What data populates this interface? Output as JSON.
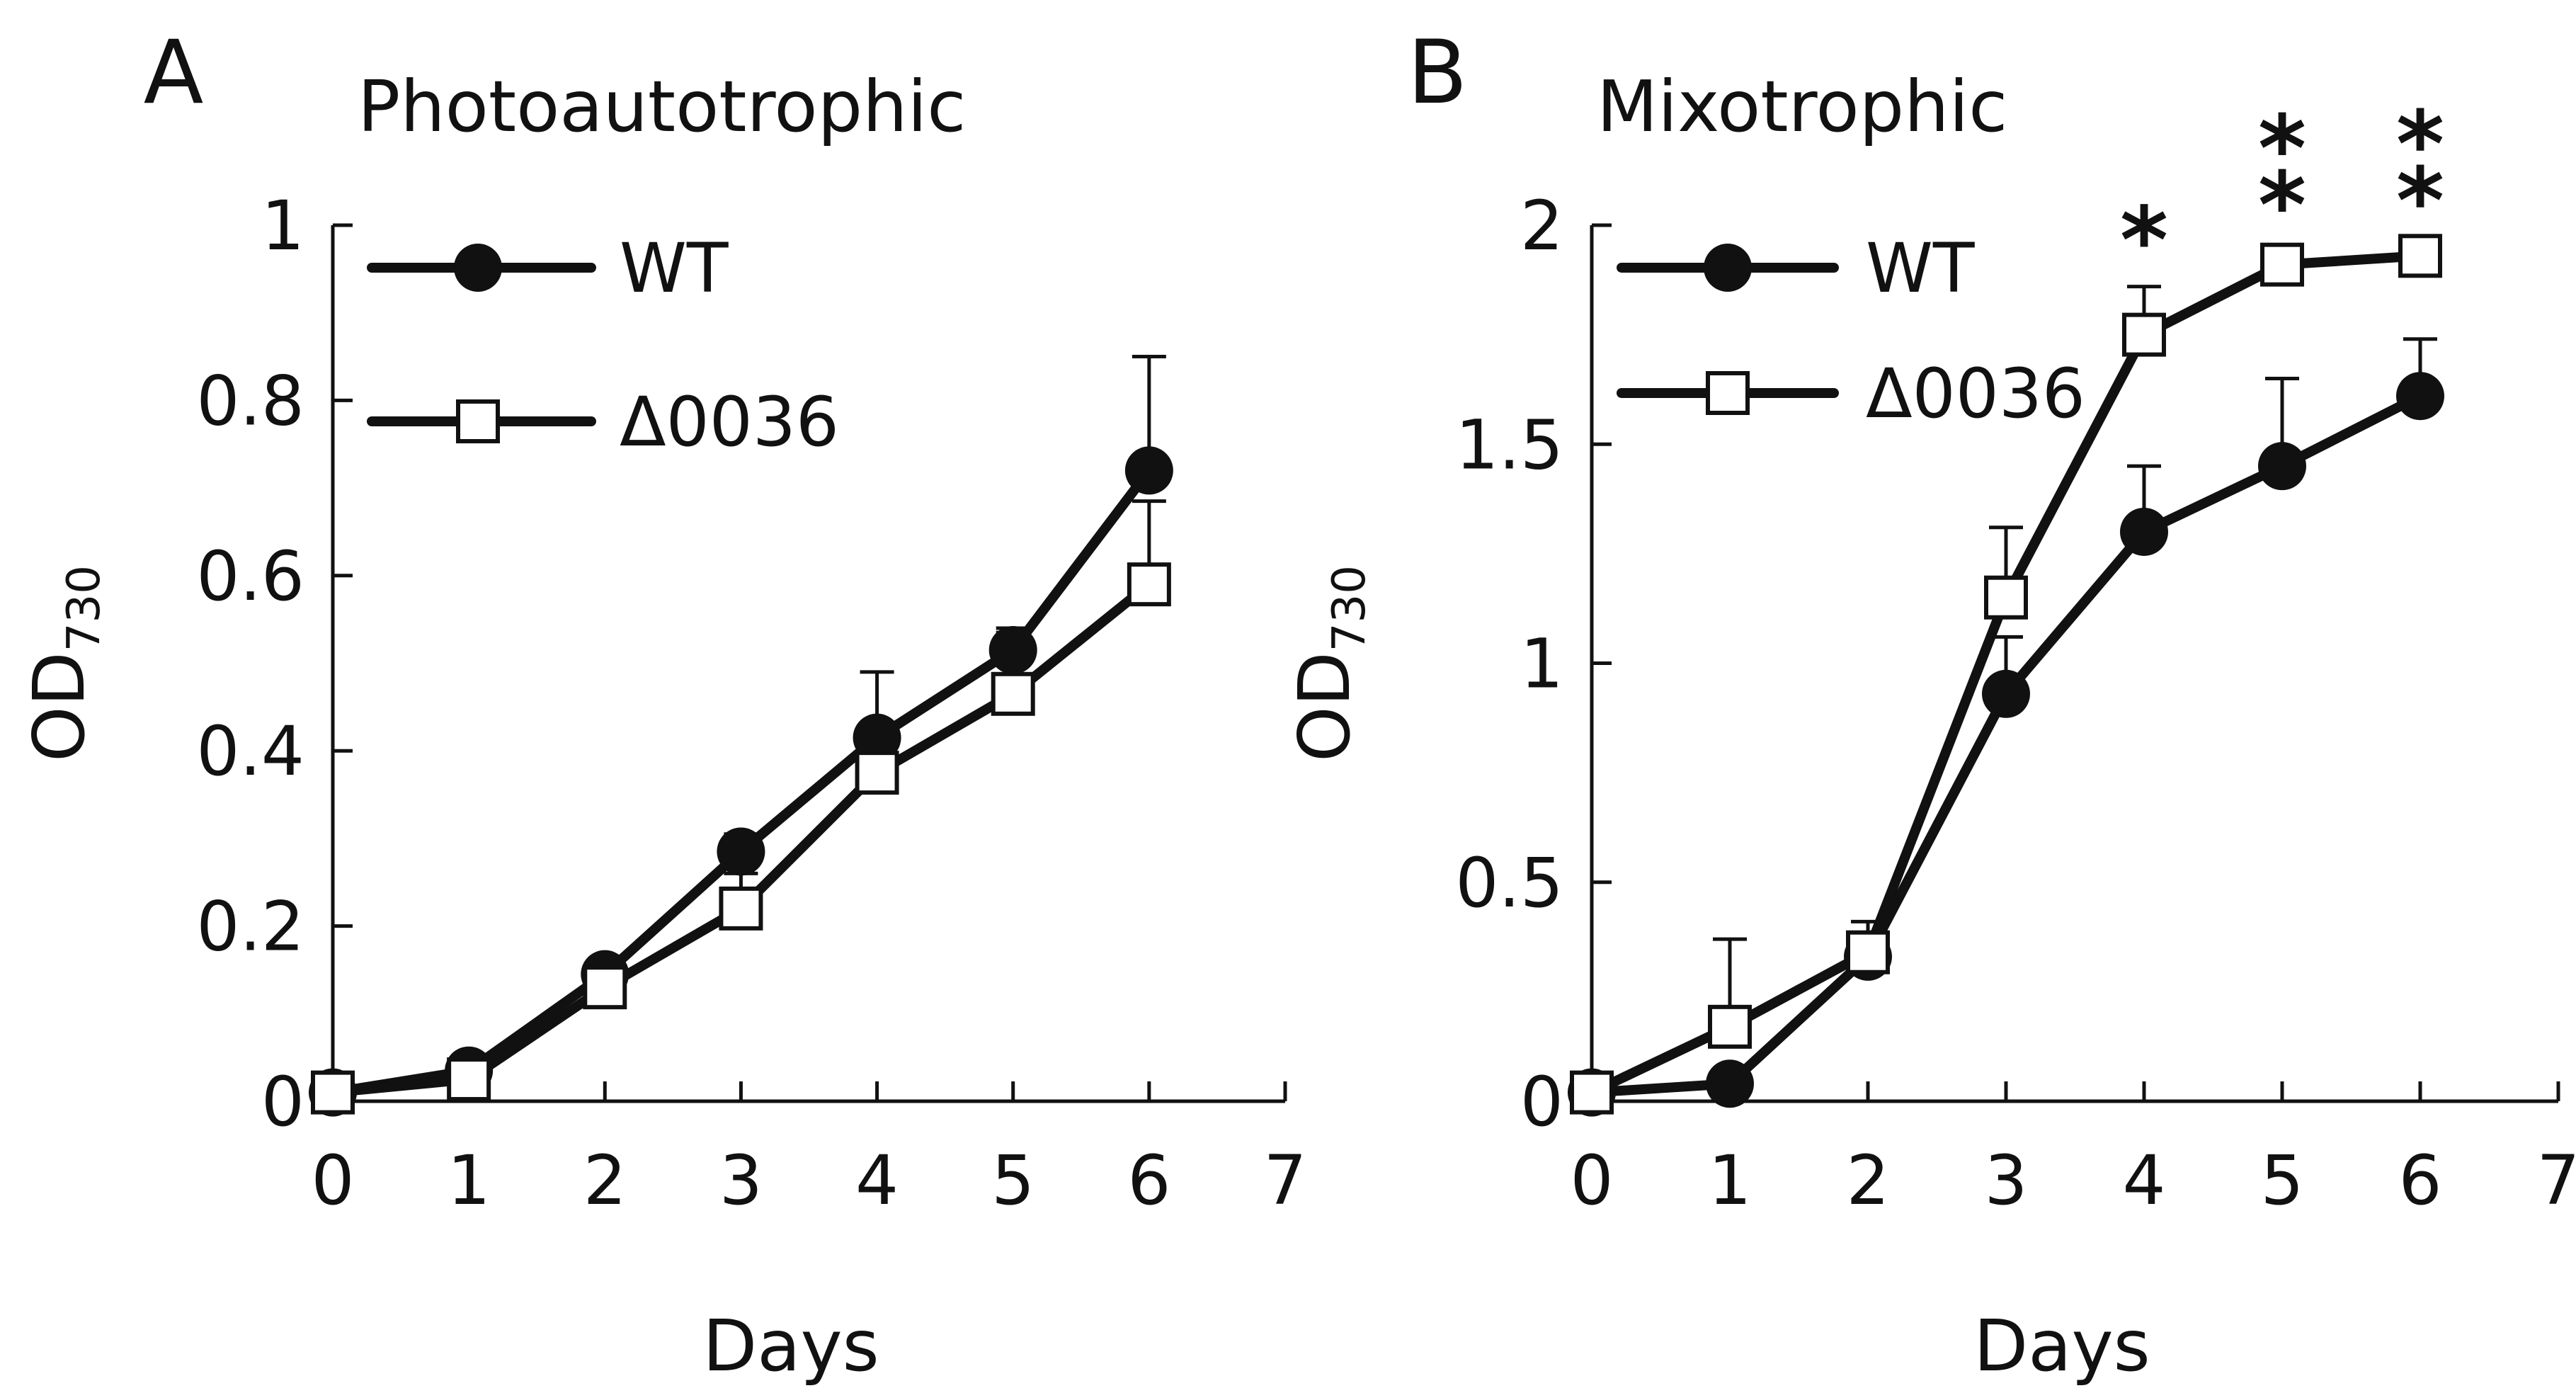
{
  "chart_data": [
    {
      "type": "line",
      "panel": "A",
      "title": "Photoautotrophic",
      "xlabel": "Days",
      "ylabel": {
        "main": "OD",
        "sub": "730"
      },
      "xlim": [
        0,
        7
      ],
      "ylim": [
        0,
        1
      ],
      "xticks": [
        0,
        1,
        2,
        3,
        4,
        5,
        6,
        7
      ],
      "yticks": [
        0,
        0.2,
        0.4,
        0.6,
        0.8,
        1
      ],
      "ytick_labels": [
        "0",
        "0.2",
        "0.4",
        "0.6",
        "0.8",
        "1"
      ],
      "grid": false,
      "legend_position": "top-left",
      "series": [
        {
          "name": "WT",
          "marker": "filled-circle",
          "x": [
            0,
            1,
            2,
            3,
            4,
            5,
            6
          ],
          "values": [
            0.01,
            0.035,
            0.145,
            0.285,
            0.415,
            0.515,
            0.72
          ],
          "error": [
            0,
            0,
            0,
            0.02,
            0.075,
            0.02,
            0.13
          ]
        },
        {
          "name": "Δ0036",
          "marker": "open-square",
          "x": [
            0,
            1,
            2,
            3,
            4,
            5,
            6
          ],
          "values": [
            0.01,
            0.025,
            0.13,
            0.22,
            0.375,
            0.465,
            0.59
          ],
          "error": [
            0,
            0,
            0,
            0.04,
            0.04,
            0.075,
            0.095
          ]
        }
      ],
      "annotations": []
    },
    {
      "type": "line",
      "panel": "B",
      "title": "Mixotrophic",
      "xlabel": "Days",
      "ylabel": {
        "main": "OD",
        "sub": "730"
      },
      "xlim": [
        0,
        7
      ],
      "ylim": [
        0,
        2
      ],
      "xticks": [
        0,
        1,
        2,
        3,
        4,
        5,
        6,
        7
      ],
      "yticks": [
        0,
        0.5,
        1,
        1.5,
        2
      ],
      "ytick_labels": [
        "0",
        "0.5",
        "1",
        "1.5",
        "2"
      ],
      "grid": false,
      "legend_position": "top-left",
      "series": [
        {
          "name": "WT",
          "marker": "filled-circle",
          "x": [
            0,
            1,
            2,
            3,
            4,
            5,
            6
          ],
          "values": [
            0.02,
            0.04,
            0.33,
            0.93,
            1.3,
            1.45,
            1.61
          ],
          "error": [
            0,
            0,
            0.05,
            0.13,
            0.15,
            0.2,
            0.13
          ]
        },
        {
          "name": "Δ0036",
          "marker": "open-square",
          "x": [
            0,
            1,
            2,
            3,
            4,
            5,
            6
          ],
          "values": [
            0.02,
            0.17,
            0.34,
            1.15,
            1.75,
            1.91,
            1.93
          ],
          "error": [
            0,
            0.2,
            0.07,
            0.16,
            0.11,
            0.03,
            0.02
          ]
        }
      ],
      "annotations": [
        {
          "x": 4,
          "text": "*"
        },
        {
          "x": 5,
          "text": "**"
        },
        {
          "x": 6,
          "text": "**"
        }
      ]
    }
  ]
}
